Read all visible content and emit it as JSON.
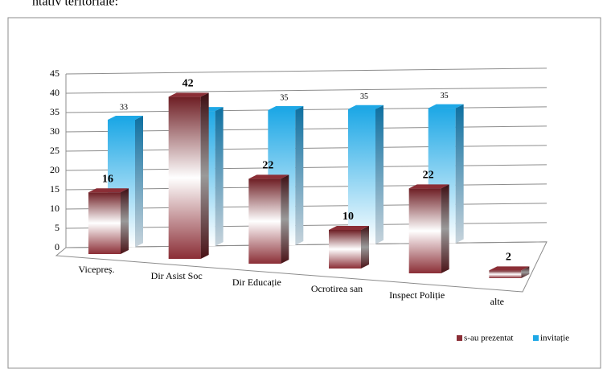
{
  "heading": "ntativ teritoriale:",
  "chart_data": {
    "type": "bar3d",
    "categories": [
      "Vicepreș.",
      "Dir Asist Soc",
      "Dir Educație",
      "Ocrotirea san",
      "Inspect Poliție",
      "alte"
    ],
    "series": [
      {
        "name": "s-au prezentat",
        "color": "#8b2e36",
        "values": [
          16,
          42,
          22,
          10,
          22,
          2
        ]
      },
      {
        "name": "invitație",
        "color": "#1ea8e6",
        "values": [
          33,
          35,
          35,
          35,
          35,
          null
        ]
      }
    ],
    "ylim": [
      0,
      45
    ],
    "yticks": [
      0,
      5,
      10,
      15,
      20,
      25,
      30,
      35,
      40,
      45
    ],
    "grid": true,
    "legend": "bottom-right"
  }
}
